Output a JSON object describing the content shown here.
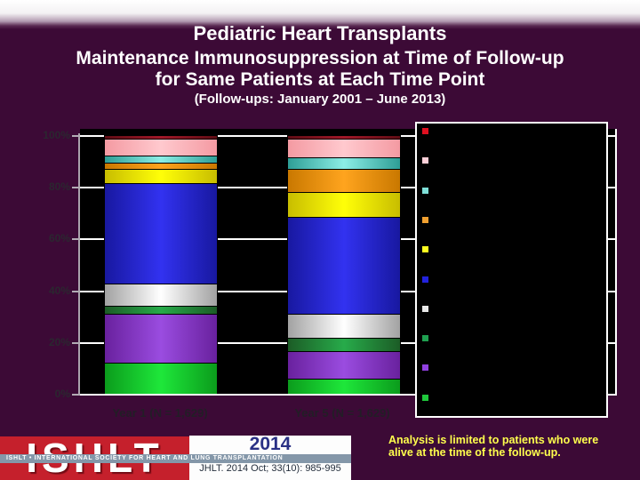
{
  "slide": {
    "title": "Pediatric Heart Transplants",
    "subtitle1": "Maintenance Immunosuppression at Time of Follow-up",
    "subtitle2": "for Same Patients at Each Time Point",
    "subtitle3": "(Follow-ups: January 2001 – June 2013)"
  },
  "chart_data": {
    "type": "bar",
    "stacked": true,
    "categories": [
      "Year 1 (N = 1,629)",
      "Year 5 (N = 1,629)"
    ],
    "series": [
      {
        "name": "bright-green",
        "color_center": "#1ee73a",
        "color_edge": "#0b9c1c",
        "values": [
          12,
          6
        ]
      },
      {
        "name": "purple",
        "color_center": "#9a4ce0",
        "color_edge": "#69219e",
        "values": [
          19,
          10.5
        ]
      },
      {
        "name": "dark-green",
        "color_center": "#27ab4a",
        "color_edge": "#1c5c26",
        "values": [
          3,
          5
        ]
      },
      {
        "name": "silver-white",
        "color_center": "#ffffff",
        "color_edge": "#a2a2a2",
        "values": [
          8.5,
          9.5
        ]
      },
      {
        "name": "blue",
        "color_center": "#3232f0",
        "color_edge": "#1818a0",
        "values": [
          39,
          37.5
        ]
      },
      {
        "name": "yellow",
        "color_center": "#ffff08",
        "color_edge": "#c8bd00",
        "values": [
          5.5,
          9.5
        ]
      },
      {
        "name": "orange",
        "color_center": "#ffa41e",
        "color_edge": "#c97800",
        "values": [
          2.5,
          9
        ]
      },
      {
        "name": "teal",
        "color_center": "#8ceee6",
        "color_edge": "#2e9e96",
        "values": [
          2.5,
          4.5
        ]
      },
      {
        "name": "pink",
        "color_center": "#ffc9ce",
        "color_edge": "#f49aa2",
        "values": [
          6.5,
          7
        ]
      },
      {
        "name": "maroon",
        "color_center": "#a01828",
        "color_edge": "#5f0c14",
        "values": [
          1.5,
          1.5
        ]
      }
    ],
    "y_axis": {
      "tick_labels": [
        "100%",
        "80%",
        "60%",
        "40%",
        "20%",
        "0%"
      ],
      "tick_values": [
        100,
        80,
        60,
        40,
        20,
        0
      ]
    },
    "ylim": [
      0,
      100
    ],
    "grid": true,
    "legend": {
      "position": "right-overlay",
      "labels_visible": false,
      "marker_colors_top_to_bottom": [
        "#e01020",
        "#ffd0d8",
        "#7fe0d8",
        "#f0a030",
        "#ffff20",
        "#2222dd",
        "#e8e8e8",
        "#1fa050",
        "#9040e0",
        "#1fc83c"
      ]
    }
  },
  "footer": {
    "logo_text": "ISHLT",
    "logo_band": "ISHLT • INTERNATIONAL SOCIETY FOR HEART AND LUNG TRANSPLANTATION",
    "year": "2014",
    "citation": "JHLT. 2014 Oct; 33(10): 985-995",
    "note": "Analysis is limited to patients who were alive at the time of the follow-up."
  },
  "colors": {
    "background": "#3c0a36",
    "plot_background": "#000000",
    "gridline": "#ffffff",
    "note_yellow": "#ffff4d",
    "logo_red": "#c5202c",
    "year_navy": "#2a3185"
  }
}
